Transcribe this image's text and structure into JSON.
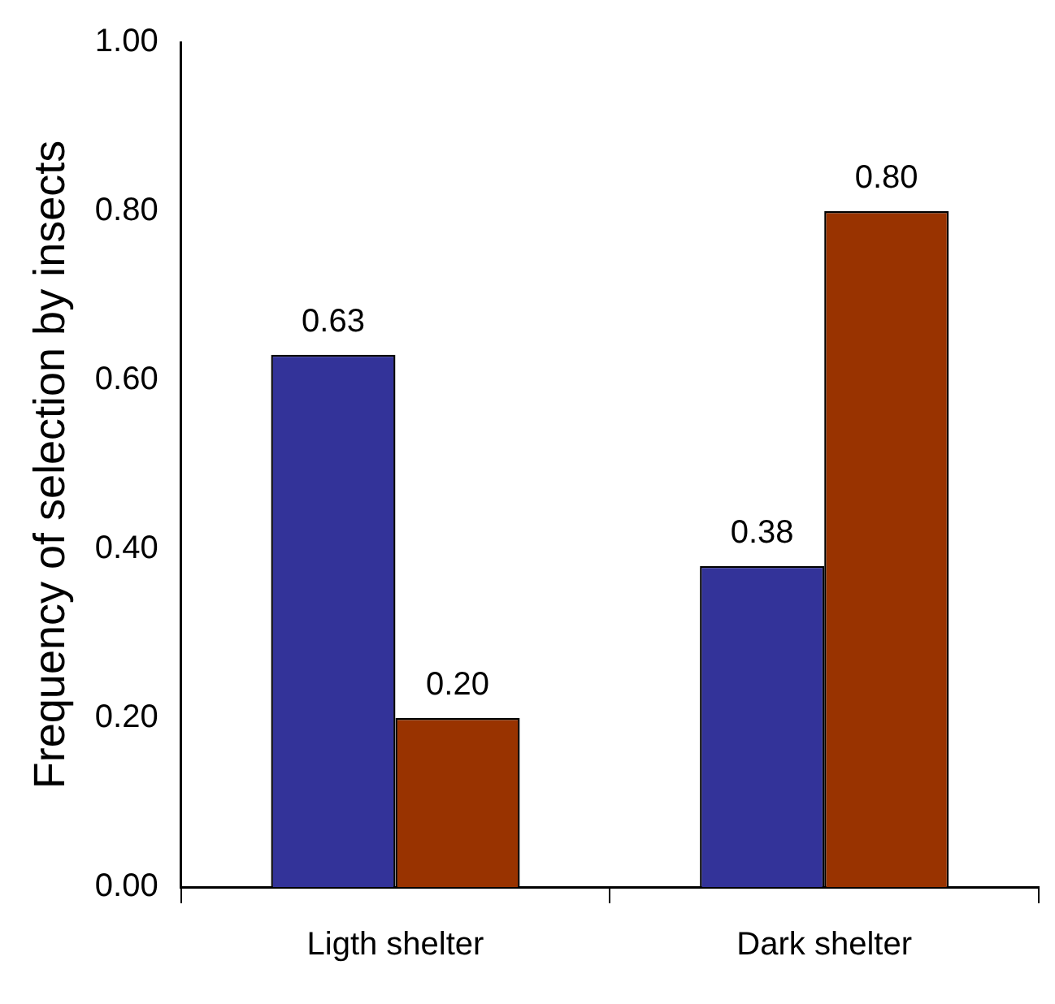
{
  "chart_data": {
    "type": "bar",
    "ylabel": "Frequency of selection by insects",
    "categories": [
      "Ligth shelter",
      "Dark shelter"
    ],
    "series": [
      {
        "color": "#333399",
        "values": [
          0.63,
          0.38
        ],
        "value_labels": [
          "0.63",
          "0.38"
        ]
      },
      {
        "color": "#993300",
        "values": [
          0.2,
          0.8
        ],
        "value_labels": [
          "0.20",
          "0.80"
        ]
      }
    ],
    "ylim": [
      0,
      1
    ],
    "yticks": [
      {
        "value": 0,
        "label": "0.00"
      },
      {
        "value": 0.2,
        "label": "0.20"
      },
      {
        "value": 0.4,
        "label": "0.40"
      },
      {
        "value": 0.6,
        "label": "0.60"
      },
      {
        "value": 0.8,
        "label": "0.80"
      },
      {
        "value": 1,
        "label": "1.00"
      }
    ],
    "grid": false,
    "legend": false
  }
}
